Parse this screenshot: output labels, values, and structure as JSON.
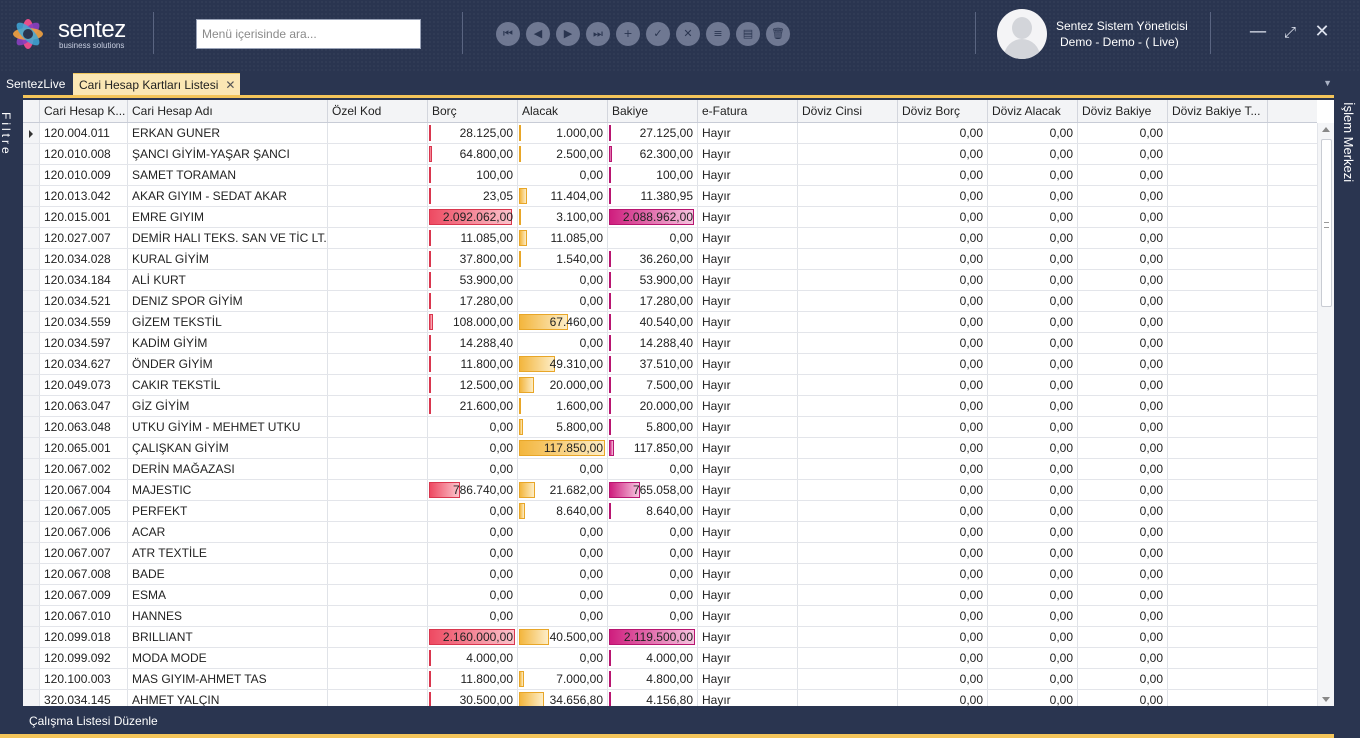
{
  "brand": {
    "name": "sentez",
    "tagline": "business solutions"
  },
  "search": {
    "placeholder": "Menü içerisinde ara..."
  },
  "toolbar": [
    {
      "name": "first-record-icon",
      "glyph": "⏮"
    },
    {
      "name": "previous-record-icon",
      "glyph": "◀"
    },
    {
      "name": "next-record-icon",
      "glyph": "▶"
    },
    {
      "name": "last-record-icon",
      "glyph": "⏭"
    },
    {
      "name": "add-icon",
      "glyph": "+"
    },
    {
      "name": "save-icon",
      "glyph": "✓"
    },
    {
      "name": "cancel-icon",
      "glyph": "✕"
    },
    {
      "name": "list-icon",
      "glyph": "≡"
    },
    {
      "name": "card-icon",
      "glyph": "▤"
    },
    {
      "name": "delete-icon",
      "glyph": "🗑"
    }
  ],
  "user": {
    "name": "Sentez Sistem Yöneticisi",
    "context": "Demo - Demo - ( Live)"
  },
  "window": {
    "minimize": "—",
    "maximize": "⤢",
    "close": "✕"
  },
  "tabs": {
    "home": "SentezLive",
    "active": "Cari Hesap Kartları Listesi",
    "close_glyph": "✕",
    "more_glyph": "▼"
  },
  "side": {
    "left": "Filtre",
    "right": "İşlem Merkezi"
  },
  "footer": {
    "label": "Çalışma Listesi Düzenle"
  },
  "colors": {
    "borc_bar": "#ee4a62",
    "alacak_bar": "#f3b63e",
    "bakiye_bar": "#cf1e7e",
    "accent": "#f4c55a"
  },
  "grid": {
    "columns": [
      "Cari Hesap K...",
      "Cari Hesap Adı",
      "Özel Kod",
      "Borç",
      "Alacak",
      "Bakiye",
      "e-Fatura",
      "Döviz Cinsi",
      "Döviz Borç",
      "Döviz Alacak",
      "Döviz Bakiye",
      "Döviz Bakiye T..."
    ],
    "bar_max": {
      "borc": 2160000,
      "alacak": 117850,
      "bakiye": 2119500
    },
    "rows": [
      [
        "120.004.011",
        "ERKAN GUNER",
        "",
        "28.125,00",
        "1.000,00",
        "27.125,00",
        "Hayır",
        "",
        "0,00",
        "0,00",
        "0,00",
        ""
      ],
      [
        "120.010.008",
        "ŞANCI GİYİM-YAŞAR ŞANCI",
        "",
        "64.800,00",
        "2.500,00",
        "62.300,00",
        "Hayır",
        "",
        "0,00",
        "0,00",
        "0,00",
        ""
      ],
      [
        "120.010.009",
        "SAMET TORAMAN",
        "",
        "100,00",
        "0,00",
        "100,00",
        "Hayır",
        "",
        "0,00",
        "0,00",
        "0,00",
        ""
      ],
      [
        "120.013.042",
        "AKAR GIYIM - SEDAT AKAR",
        "",
        "23,05",
        "11.404,00",
        "11.380,95",
        "Hayır",
        "",
        "0,00",
        "0,00",
        "0,00",
        ""
      ],
      [
        "120.015.001",
        "EMRE GIYIM",
        "",
        "2.092.062,00",
        "3.100,00",
        "2.088.962,00",
        "Hayır",
        "",
        "0,00",
        "0,00",
        "0,00",
        ""
      ],
      [
        "120.027.007",
        "DEMİR HALI TEKS. SAN VE TİC LT...",
        "",
        "11.085,00",
        "11.085,00",
        "0,00",
        "Hayır",
        "",
        "0,00",
        "0,00",
        "0,00",
        ""
      ],
      [
        "120.034.028",
        "KURAL GİYİM",
        "",
        "37.800,00",
        "1.540,00",
        "36.260,00",
        "Hayır",
        "",
        "0,00",
        "0,00",
        "0,00",
        ""
      ],
      [
        "120.034.184",
        "ALİ KURT",
        "",
        "53.900,00",
        "0,00",
        "53.900,00",
        "Hayır",
        "",
        "0,00",
        "0,00",
        "0,00",
        ""
      ],
      [
        "120.034.521",
        "DENIZ SPOR GİYİM",
        "",
        "17.280,00",
        "0,00",
        "17.280,00",
        "Hayır",
        "",
        "0,00",
        "0,00",
        "0,00",
        ""
      ],
      [
        "120.034.559",
        "GİZEM TEKSTİL",
        "",
        "108.000,00",
        "67.460,00",
        "40.540,00",
        "Hayır",
        "",
        "0,00",
        "0,00",
        "0,00",
        ""
      ],
      [
        "120.034.597",
        "KADİM GİYİM",
        "",
        "14.288,40",
        "0,00",
        "14.288,40",
        "Hayır",
        "",
        "0,00",
        "0,00",
        "0,00",
        ""
      ],
      [
        "120.034.627",
        "ÖNDER GİYİM",
        "",
        "11.800,00",
        "49.310,00",
        "37.510,00",
        "Hayır",
        "",
        "0,00",
        "0,00",
        "0,00",
        ""
      ],
      [
        "120.049.073",
        "CAKIR TEKSTİL",
        "",
        "12.500,00",
        "20.000,00",
        "7.500,00",
        "Hayır",
        "",
        "0,00",
        "0,00",
        "0,00",
        ""
      ],
      [
        "120.063.047",
        "GİZ GİYİM",
        "",
        "21.600,00",
        "1.600,00",
        "20.000,00",
        "Hayır",
        "",
        "0,00",
        "0,00",
        "0,00",
        ""
      ],
      [
        "120.063.048",
        "UTKU GİYİM - MEHMET UTKU",
        "",
        "0,00",
        "5.800,00",
        "5.800,00",
        "Hayır",
        "",
        "0,00",
        "0,00",
        "0,00",
        ""
      ],
      [
        "120.065.001",
        "ÇALIŞKAN GİYİM",
        "",
        "0,00",
        "117.850,00",
        "117.850,00",
        "Hayır",
        "",
        "0,00",
        "0,00",
        "0,00",
        ""
      ],
      [
        "120.067.002",
        "DERİN MAĞAZASI",
        "",
        "0,00",
        "0,00",
        "0,00",
        "Hayır",
        "",
        "0,00",
        "0,00",
        "0,00",
        ""
      ],
      [
        "120.067.004",
        "MAJESTIC",
        "",
        "786.740,00",
        "21.682,00",
        "765.058,00",
        "Hayır",
        "",
        "0,00",
        "0,00",
        "0,00",
        ""
      ],
      [
        "120.067.005",
        "PERFEKT",
        "",
        "0,00",
        "8.640,00",
        "8.640,00",
        "Hayır",
        "",
        "0,00",
        "0,00",
        "0,00",
        ""
      ],
      [
        "120.067.006",
        "ACAR",
        "",
        "0,00",
        "0,00",
        "0,00",
        "Hayır",
        "",
        "0,00",
        "0,00",
        "0,00",
        ""
      ],
      [
        "120.067.007",
        "ATR TEXTİLE",
        "",
        "0,00",
        "0,00",
        "0,00",
        "Hayır",
        "",
        "0,00",
        "0,00",
        "0,00",
        ""
      ],
      [
        "120.067.008",
        "BADE",
        "",
        "0,00",
        "0,00",
        "0,00",
        "Hayır",
        "",
        "0,00",
        "0,00",
        "0,00",
        ""
      ],
      [
        "120.067.009",
        "ESMA",
        "",
        "0,00",
        "0,00",
        "0,00",
        "Hayır",
        "",
        "0,00",
        "0,00",
        "0,00",
        ""
      ],
      [
        "120.067.010",
        "HANNES",
        "",
        "0,00",
        "0,00",
        "0,00",
        "Hayır",
        "",
        "0,00",
        "0,00",
        "0,00",
        ""
      ],
      [
        "120.099.018",
        "BRILLIANT",
        "",
        "2.160.000,00",
        "40.500,00",
        "2.119.500,00",
        "Hayır",
        "",
        "0,00",
        "0,00",
        "0,00",
        ""
      ],
      [
        "120.099.092",
        "MODA MODE",
        "",
        "4.000,00",
        "0,00",
        "4.000,00",
        "Hayır",
        "",
        "0,00",
        "0,00",
        "0,00",
        ""
      ],
      [
        "120.100.003",
        "MAS GIYIM-AHMET TAS",
        "",
        "11.800,00",
        "7.000,00",
        "4.800,00",
        "Hayır",
        "",
        "0,00",
        "0,00",
        "0,00",
        ""
      ],
      [
        "320.034.145",
        "AHMET YALÇIN",
        "",
        "30.500,00",
        "34.656,80",
        "4.156,80",
        "Hayır",
        "",
        "0,00",
        "0,00",
        "0,00",
        ""
      ]
    ]
  }
}
